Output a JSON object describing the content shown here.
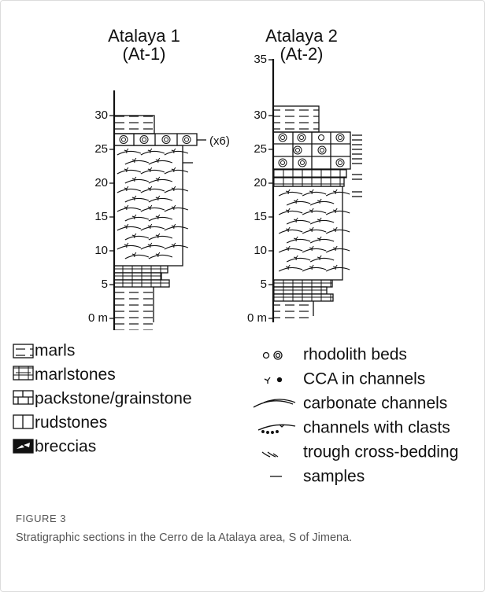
{
  "figure": {
    "sections": [
      {
        "title": "Atalaya 1",
        "code": "(At-1)",
        "scale": [
          "30",
          "25",
          "20",
          "15",
          "10",
          "5",
          "0 m"
        ],
        "note": "(x6)"
      },
      {
        "title": "Atalaya 2",
        "code": "(At-2)",
        "scale": [
          "35",
          "30",
          "25",
          "20",
          "15",
          "10",
          "5",
          "0 m"
        ]
      }
    ],
    "lithology_legend": [
      "marls",
      "marlstones",
      "packstone/grainstone",
      "rudstones",
      "breccias"
    ],
    "symbol_legend": [
      "rhodolith beds",
      "CCA in channels",
      "carbonate channels",
      "channels with clasts",
      "trough cross-bedding",
      "samples"
    ]
  },
  "caption": {
    "label": "FIGURE 3",
    "text": "Stratigraphic sections in the Cerro de la Atalaya area, S of Jimena."
  }
}
